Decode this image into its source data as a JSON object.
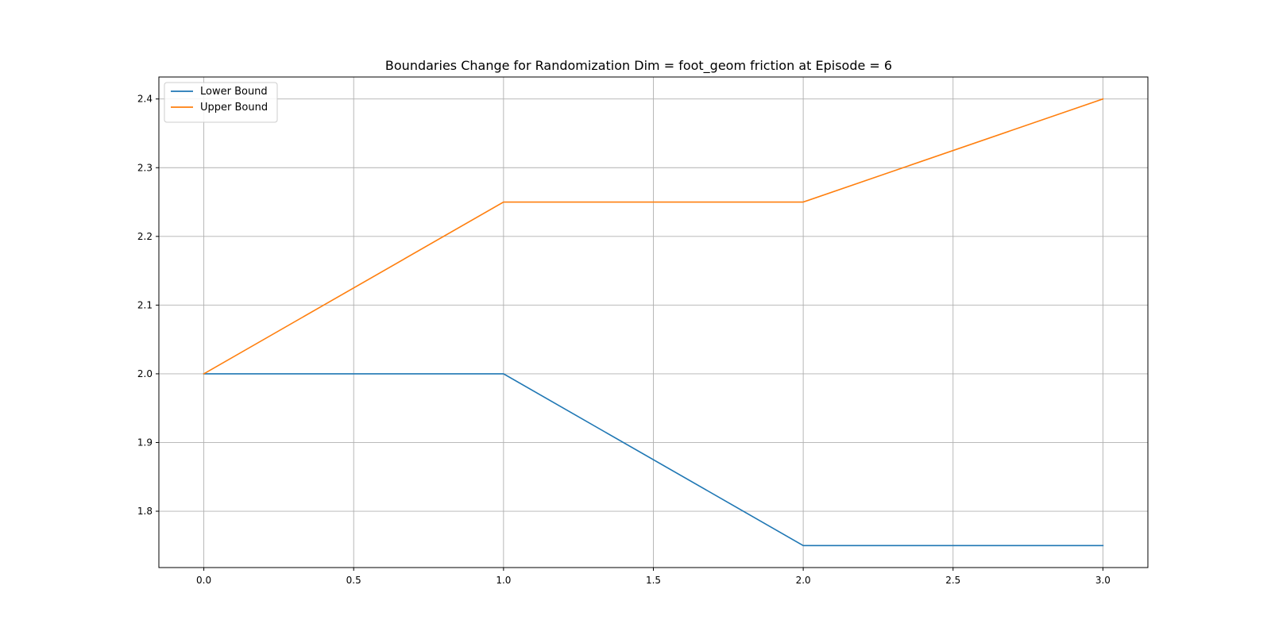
{
  "chart_data": {
    "type": "line",
    "title": "Boundaries Change for Randomization Dim = foot_geom friction at Episode = 6",
    "xlabel": "",
    "ylabel": "",
    "x": [
      0,
      1,
      2,
      3
    ],
    "xlim": [
      -0.15,
      3.15
    ],
    "ylim": [
      1.718,
      2.432
    ],
    "x_ticks": [
      0.0,
      0.5,
      1.0,
      1.5,
      2.0,
      2.5,
      3.0
    ],
    "x_tick_labels": [
      "0.0",
      "0.5",
      "1.0",
      "1.5",
      "2.0",
      "2.5",
      "3.0"
    ],
    "y_ticks": [
      1.8,
      1.9,
      2.0,
      2.1,
      2.2,
      2.3,
      2.4
    ],
    "y_tick_labels": [
      "1.8",
      "1.9",
      "2.0",
      "2.1",
      "2.2",
      "2.3",
      "2.4"
    ],
    "grid": true,
    "legend_position": "top-left",
    "series": [
      {
        "name": "Lower Bound",
        "color": "#1f77b4",
        "values": [
          2.0,
          2.0,
          1.75,
          1.75
        ]
      },
      {
        "name": "Upper Bound",
        "color": "#ff7f0e",
        "values": [
          2.0,
          2.25,
          2.25,
          2.4
        ]
      }
    ]
  }
}
